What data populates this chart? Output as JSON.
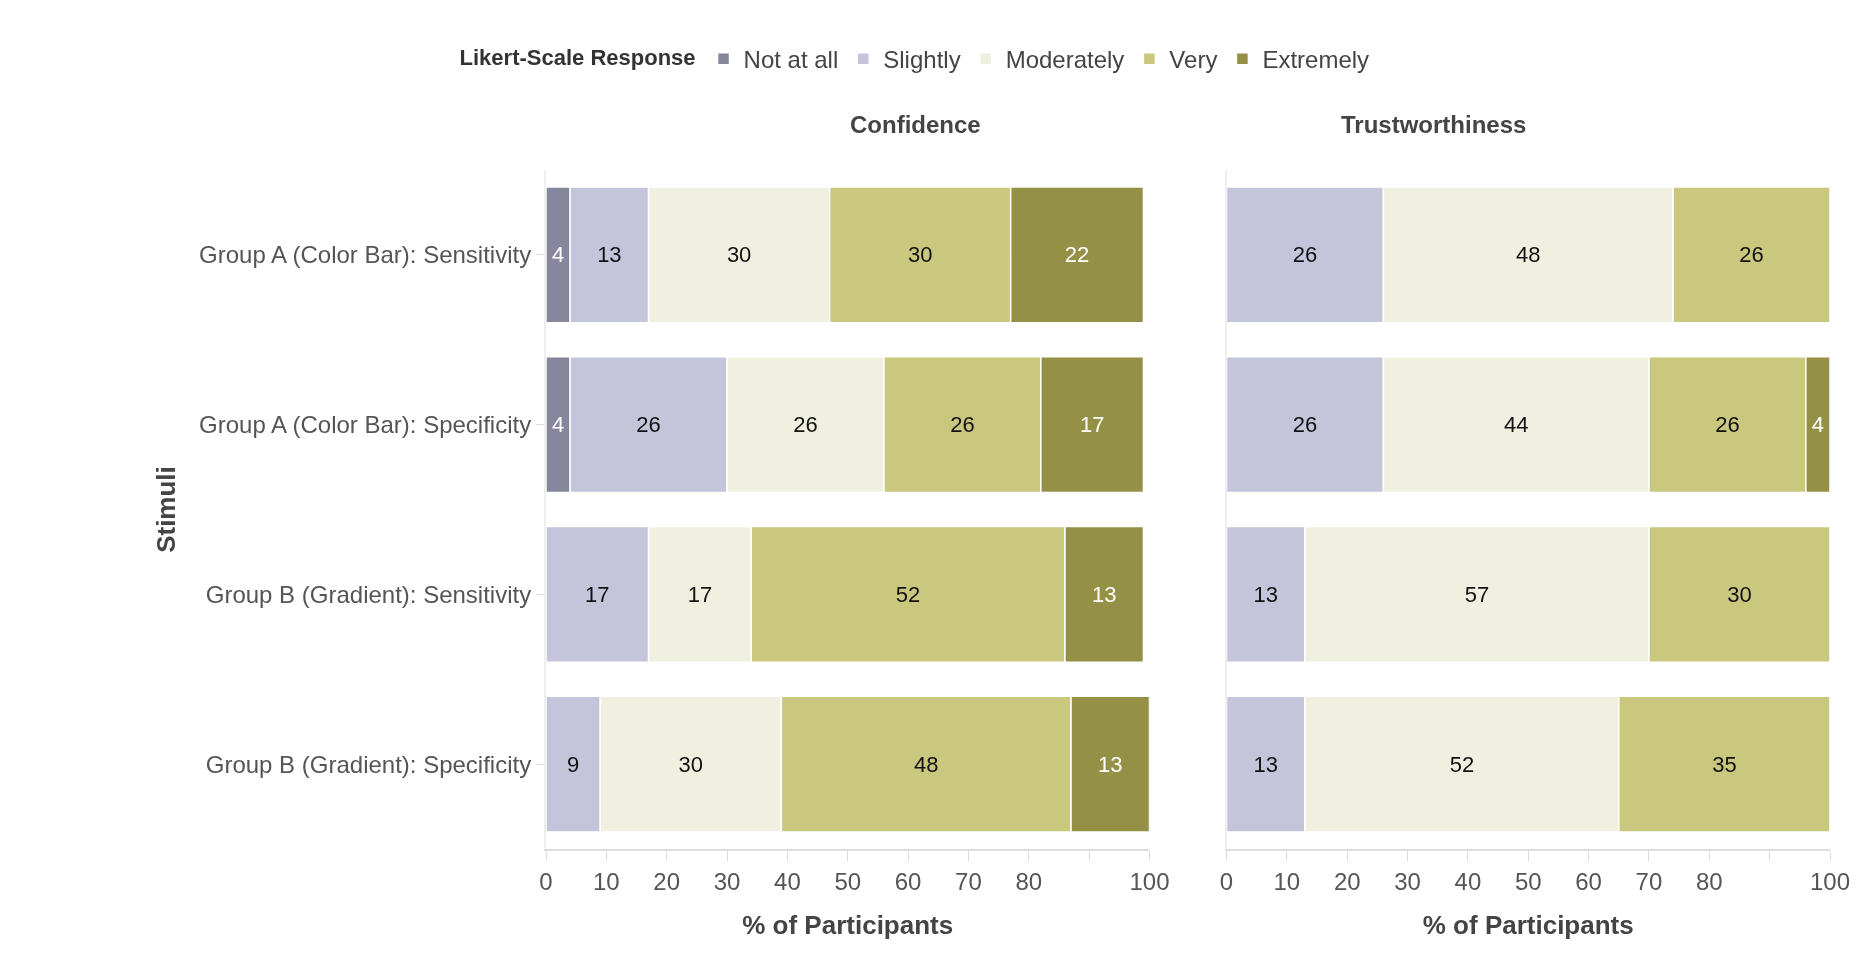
{
  "chart_data": [
    {
      "type": "bar",
      "orientation": "horizontal",
      "stacked": true,
      "title": "Confidence",
      "xlabel": "% of Participants",
      "ylabel": "Stimuli",
      "legend_title": "Likert-Scale Response",
      "legend": "top",
      "data_labels": true,
      "grid": false,
      "categories": [
        "Group A (Color Bar): Sensitivity",
        "Group A (Color Bar): Specificity",
        "Group B (Gradient): Sensitivity",
        "Group B (Gradient): Specificity"
      ],
      "xlim": [
        0,
        100
      ],
      "xticks": [
        0,
        10,
        20,
        30,
        40,
        50,
        60,
        70,
        80,
        {
          "value": 90,
          "label": null
        },
        100
      ],
      "series": [
        {
          "name": "Not at all",
          "color": "#86869c",
          "values": [
            4,
            4,
            null,
            null
          ]
        },
        {
          "name": "Slightly",
          "color": "#c4c4da",
          "values": [
            13,
            26,
            17,
            9
          ]
        },
        {
          "name": "Moderately",
          "color": "#eff0e0",
          "values": [
            30,
            26,
            17,
            30
          ]
        },
        {
          "name": "Very",
          "color": "#cac77f",
          "values": [
            30,
            26,
            52,
            48
          ]
        },
        {
          "name": "Extremely",
          "color": "#949147",
          "values": [
            22,
            17,
            13,
            13
          ]
        }
      ]
    },
    {
      "type": "bar",
      "orientation": "horizontal",
      "stacked": true,
      "title": "Trustworthiness",
      "xlabel": "% of Participants",
      "data_labels": true,
      "grid": false,
      "tick_labels": "x",
      "xlim": [
        0,
        100
      ],
      "xticks": [
        0,
        10,
        20,
        30,
        40,
        50,
        60,
        70,
        80,
        {
          "value": 90,
          "label": null
        },
        100
      ],
      "series": [
        {
          "color": "#c4c4da",
          "values": [
            26,
            26,
            13,
            13
          ]
        },
        {
          "color": "#eff0e0",
          "values": [
            48,
            44,
            57,
            52
          ]
        },
        {
          "color": "#cac77f",
          "values": [
            26,
            26,
            30,
            35
          ]
        },
        {
          "color": "#949147",
          "values": [
            null,
            4,
            null,
            null
          ]
        }
      ]
    }
  ]
}
